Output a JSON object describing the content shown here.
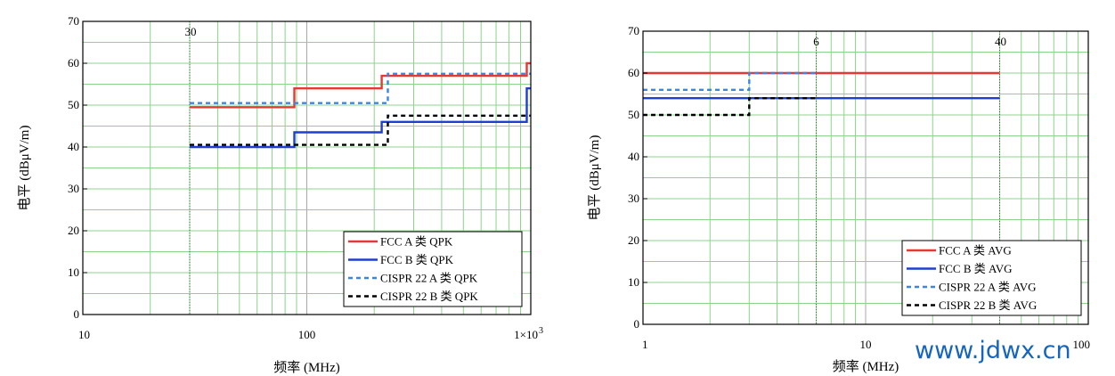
{
  "watermark": "www.jdwx.cn",
  "chart_data": [
    {
      "type": "line",
      "xscale": "log",
      "xlim": [
        10,
        1000
      ],
      "ylim": [
        0,
        70
      ],
      "x_ticks": [
        10,
        100,
        1000
      ],
      "x_tick_labels": [
        "10",
        "100",
        "1×10"
      ],
      "x_tick_exp": "3",
      "y_ticks": [
        0,
        10,
        20,
        30,
        40,
        50,
        60,
        70
      ],
      "xlabel": "频率 (MHz)",
      "ylabel": "电平 (dBμV/m)",
      "grid": true,
      "markers": [
        {
          "x": 30,
          "label": "30"
        }
      ],
      "legend_position": "bottom-right",
      "series": [
        {
          "name": "FCC A 类 QPK",
          "color": "#e53935",
          "dash": "solid",
          "x": [
            30,
            88,
            88,
            216,
            216,
            960,
            960,
            1000
          ],
          "y": [
            49.5,
            49.5,
            54,
            54,
            57,
            57,
            60,
            60
          ]
        },
        {
          "name": "FCC B 类 QPK",
          "color": "#1e3fcf",
          "dash": "solid",
          "x": [
            30,
            88,
            88,
            216,
            216,
            960,
            960,
            1000
          ],
          "y": [
            40,
            40,
            43.5,
            43.5,
            46,
            46,
            54,
            54
          ]
        },
        {
          "name": "CISPR 22 A 类 QPK",
          "color": "#3a86e0",
          "dash": "dashed",
          "x": [
            30,
            230,
            230,
            1000
          ],
          "y": [
            50.5,
            50.5,
            57.5,
            57.5
          ]
        },
        {
          "name": "CISPR 22 B 类 QPK",
          "color": "#000000",
          "dash": "dashed",
          "x": [
            30,
            230,
            230,
            1000
          ],
          "y": [
            40.5,
            40.5,
            47.5,
            47.5
          ]
        }
      ]
    },
    {
      "type": "line",
      "xscale": "log",
      "xlim": [
        1,
        100
      ],
      "ylim": [
        0,
        70
      ],
      "x_ticks": [
        1,
        10,
        100
      ],
      "x_tick_labels": [
        "1",
        "10",
        "100"
      ],
      "y_ticks": [
        0,
        10,
        20,
        30,
        40,
        50,
        60,
        70
      ],
      "xlabel": "频率 (MHz)",
      "ylabel": "电平 (dBμV/m)",
      "grid": true,
      "markers": [
        {
          "x": 6,
          "label": "6"
        },
        {
          "x": 40,
          "label": "40"
        }
      ],
      "legend_position": "bottom-right",
      "series": [
        {
          "name": "FCC A 类 AVG",
          "color": "#e53935",
          "dash": "solid",
          "x": [
            1,
            40
          ],
          "y": [
            60,
            60
          ]
        },
        {
          "name": "FCC B 类 AVG",
          "color": "#1e3fcf",
          "dash": "solid",
          "x": [
            1,
            40
          ],
          "y": [
            54,
            54
          ]
        },
        {
          "name": "CISPR 22 A 类 AVG",
          "color": "#3a86e0",
          "dash": "dashed",
          "x": [
            1,
            3,
            3,
            6
          ],
          "y": [
            56,
            56,
            60,
            60
          ]
        },
        {
          "name": "CISPR 22 B 类 AVG",
          "color": "#000000",
          "dash": "dashed",
          "x": [
            1,
            3,
            3,
            6
          ],
          "y": [
            50,
            50,
            54,
            54
          ]
        }
      ]
    }
  ]
}
